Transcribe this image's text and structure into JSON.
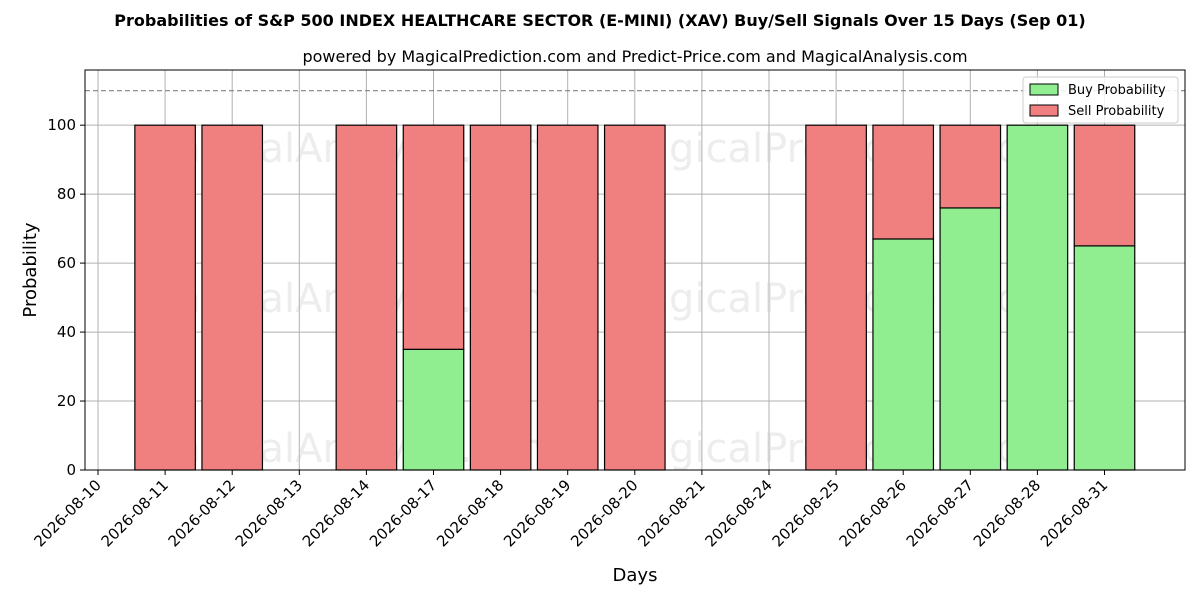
{
  "chart_data": {
    "type": "bar",
    "stacked": true,
    "title": "Probabilities of S&P 500 INDEX HEALTHCARE SECTOR (E-MINI) (XAV) Buy/Sell Signals Over 15 Days (Sep 01)",
    "subtitle": "powered by MagicalPrediction.com and Predict-Price.com and MagicalAnalysis.com",
    "xlabel": "Days",
    "ylabel": "Probability",
    "ylim": [
      0,
      116
    ],
    "yticks": [
      0,
      20,
      40,
      60,
      80,
      100
    ],
    "reference_line": 110,
    "grid": true,
    "legend_position": "top-right",
    "categories": [
      "2026-08-10",
      "2026-08-11",
      "2026-08-12",
      "2026-08-13",
      "2026-08-14",
      "2026-08-17",
      "2026-08-18",
      "2026-08-19",
      "2026-08-20",
      "2026-08-21",
      "2026-08-24",
      "2026-08-25",
      "2026-08-26",
      "2026-08-27",
      "2026-08-28",
      "2026-08-31"
    ],
    "series": [
      {
        "name": "Buy Probability",
        "color": "#90ee90",
        "values": [
          null,
          0,
          0,
          null,
          0,
          35,
          0,
          0,
          0,
          null,
          null,
          0,
          67,
          76,
          100,
          65
        ]
      },
      {
        "name": "Sell Probability",
        "color": "#f08080",
        "values": [
          null,
          100,
          100,
          null,
          100,
          65,
          100,
          100,
          100,
          null,
          null,
          100,
          33,
          24,
          0,
          35
        ]
      }
    ],
    "watermarks": [
      "MagicalAnalysis.com",
      "MagicalPrediction.com",
      "MagicalAnalysis.com",
      "MagicalPrediction.com",
      "MagicalAnalysis.com",
      "MagicalPrediction.com"
    ]
  }
}
